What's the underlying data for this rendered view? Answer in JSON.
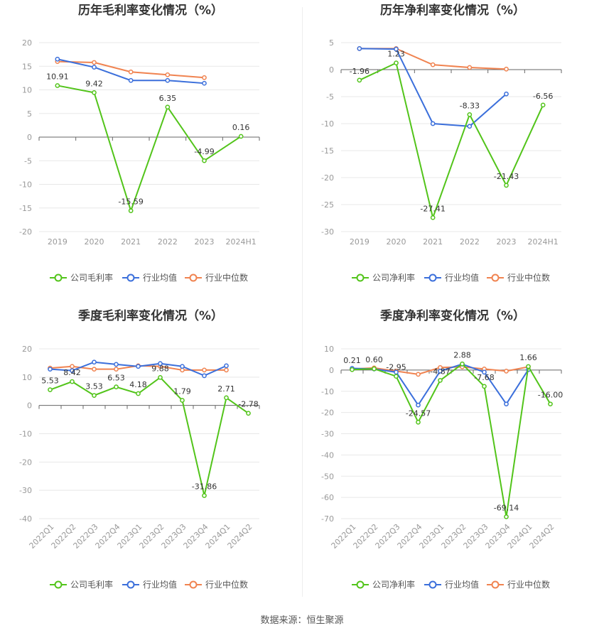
{
  "source_text": "数据来源：恒生聚源",
  "colors": {
    "company": "#52c41a",
    "avg": "#3b6fdb",
    "median": "#f08350",
    "grid": "#e8e8e8",
    "axis": "#666666"
  },
  "chart_data": [
    {
      "type": "line",
      "title": "历年毛利率变化情况（%）",
      "categories": [
        "2019",
        "2020",
        "2021",
        "2022",
        "2023",
        "2024H1"
      ],
      "ylim": [
        -20,
        20
      ],
      "yticks": [
        20,
        15,
        10,
        5,
        0,
        -5,
        -10,
        -15,
        -20
      ],
      "rotate_x": false,
      "legend": [
        "公司毛利率",
        "行业均值",
        "行业中位数"
      ],
      "series": [
        {
          "name": "公司毛利率",
          "values": [
            10.91,
            9.42,
            -15.59,
            6.35,
            -4.99,
            0.16
          ],
          "labels": [
            "10.91",
            "9.42",
            "-15.59",
            "6.35",
            "-4.99",
            "0.16"
          ]
        },
        {
          "name": "行业均值",
          "values": [
            16.5,
            14.8,
            12.0,
            12.0,
            11.4,
            null
          ]
        },
        {
          "name": "行业中位数",
          "values": [
            16.0,
            15.8,
            13.8,
            13.2,
            12.6,
            null
          ]
        }
      ]
    },
    {
      "type": "line",
      "title": "历年净利率变化情况（%）",
      "categories": [
        "2019",
        "2020",
        "2021",
        "2022",
        "2023",
        "2024H1"
      ],
      "ylim": [
        -30,
        5
      ],
      "yticks": [
        5,
        0,
        -5,
        -10,
        -15,
        -20,
        -25,
        -30
      ],
      "rotate_x": false,
      "legend": [
        "公司净利率",
        "行业均值",
        "行业中位数"
      ],
      "series": [
        {
          "name": "公司净利率",
          "values": [
            -1.96,
            1.23,
            -27.41,
            -8.33,
            -21.43,
            -6.56
          ],
          "labels": [
            "-1.96",
            "1.23",
            "-27.41",
            "-8.33",
            "-21.43",
            "-6.56"
          ]
        },
        {
          "name": "行业均值",
          "values": [
            3.9,
            3.8,
            -10.0,
            -10.5,
            -4.5,
            null
          ]
        },
        {
          "name": "行业中位数",
          "values": [
            3.9,
            3.9,
            0.9,
            0.4,
            0.1,
            null
          ]
        }
      ]
    },
    {
      "type": "line",
      "title": "季度毛利率变化情况（%）",
      "categories": [
        "2022Q1",
        "2022Q2",
        "2022Q3",
        "2022Q4",
        "2023Q1",
        "2023Q2",
        "2023Q3",
        "2023Q4",
        "2024Q1",
        "2024Q2"
      ],
      "ylim": [
        -40,
        20
      ],
      "yticks": [
        20,
        10,
        0,
        -10,
        -20,
        -30,
        -40
      ],
      "rotate_x": true,
      "legend": [
        "公司毛利率",
        "行业均值",
        "行业中位数"
      ],
      "series": [
        {
          "name": "公司毛利率",
          "values": [
            5.53,
            8.42,
            3.53,
            6.53,
            4.18,
            9.88,
            1.79,
            -31.86,
            2.71,
            -2.78
          ],
          "labels": [
            "5.53",
            "8.42",
            "3.53",
            "6.53",
            "4.18",
            "9.88",
            "1.79",
            "-31.86",
            "2.71",
            "-2.78"
          ]
        },
        {
          "name": "行业均值",
          "values": [
            12.8,
            12.3,
            15.3,
            14.5,
            13.8,
            14.8,
            13.8,
            10.5,
            14.0,
            null
          ]
        },
        {
          "name": "行业中位数",
          "values": [
            13.2,
            13.8,
            12.8,
            12.8,
            14.0,
            13.8,
            12.5,
            12.5,
            12.5,
            null
          ]
        }
      ]
    },
    {
      "type": "line",
      "title": "季度净利率变化情况（%）",
      "categories": [
        "2022Q1",
        "2022Q2",
        "2022Q3",
        "2022Q4",
        "2023Q1",
        "2023Q2",
        "2023Q3",
        "2023Q4",
        "2024Q1",
        "2024Q2"
      ],
      "ylim": [
        -70,
        10
      ],
      "yticks": [
        10,
        0,
        -10,
        -20,
        -30,
        -40,
        -50,
        -60,
        -70
      ],
      "rotate_x": true,
      "legend": [
        "公司净利率",
        "行业均值",
        "行业中位数"
      ],
      "series": [
        {
          "name": "公司净利率",
          "values": [
            0.21,
            0.6,
            -2.95,
            -24.57,
            -4.87,
            2.88,
            -7.68,
            -69.14,
            1.66,
            -16.0
          ],
          "labels": [
            "0.21",
            "0.60",
            "-2.95",
            "-24.57",
            "-4.87",
            "2.88",
            "-7.68",
            "-69.14",
            "1.66",
            "-16.00"
          ]
        },
        {
          "name": "行业均值",
          "values": [
            0.8,
            0.5,
            -1.0,
            -16.5,
            -0.5,
            2.8,
            -1.0,
            -16.0,
            0.2,
            null
          ]
        },
        {
          "name": "行业中位数",
          "values": [
            0.5,
            1.0,
            -0.5,
            -2.0,
            1.2,
            1.5,
            0.5,
            -0.5,
            1.5,
            null
          ]
        }
      ]
    }
  ]
}
